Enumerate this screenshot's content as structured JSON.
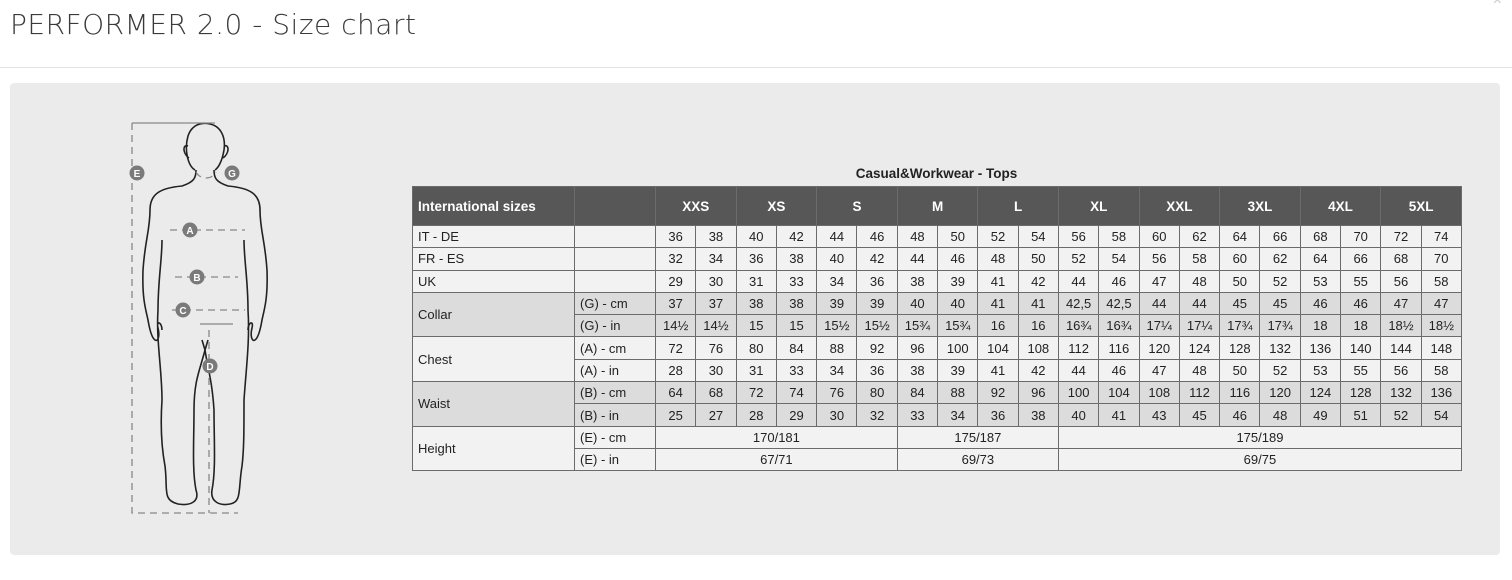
{
  "header": {
    "title": "PERFORMER 2.0 - Size chart",
    "close_label": "×"
  },
  "figure": {
    "markers": [
      "E",
      "G",
      "A",
      "B",
      "C",
      "D"
    ]
  },
  "table": {
    "caption": "Casual&Workwear - Tops",
    "header_label": "International sizes",
    "sizes": [
      "XXS",
      "XS",
      "S",
      "M",
      "L",
      "XL",
      "XXL",
      "3XL",
      "4XL",
      "5XL"
    ],
    "rows": [
      {
        "label": "IT - DE",
        "sub": "",
        "values": [
          "36",
          "38",
          "40",
          "42",
          "44",
          "46",
          "48",
          "50",
          "52",
          "54",
          "56",
          "58",
          "60",
          "62",
          "64",
          "66",
          "68",
          "70",
          "72",
          "74"
        ]
      },
      {
        "label": "FR - ES",
        "sub": "",
        "values": [
          "32",
          "34",
          "36",
          "38",
          "40",
          "42",
          "44",
          "46",
          "48",
          "50",
          "52",
          "54",
          "56",
          "58",
          "60",
          "62",
          "64",
          "66",
          "68",
          "70"
        ]
      },
      {
        "label": "UK",
        "sub": "",
        "values": [
          "29",
          "30",
          "31",
          "33",
          "34",
          "36",
          "38",
          "39",
          "41",
          "42",
          "44",
          "46",
          "47",
          "48",
          "50",
          "52",
          "53",
          "55",
          "56",
          "58"
        ]
      }
    ],
    "groups": [
      {
        "label": "Collar",
        "shade": "g",
        "rows": [
          {
            "sub": "(G) - cm",
            "values": [
              "37",
              "37",
              "38",
              "38",
              "39",
              "39",
              "40",
              "40",
              "41",
              "41",
              "42,5",
              "42,5",
              "44",
              "44",
              "45",
              "45",
              "46",
              "46",
              "47",
              "47"
            ]
          },
          {
            "sub": "(G)  - in",
            "values": [
              "14½",
              "14½",
              "15",
              "15",
              "15½",
              "15½",
              "15¾",
              "15¾",
              "16",
              "16",
              "16¾",
              "16¾",
              "17¼",
              "17¼",
              "17¾",
              "17¾",
              "18",
              "18",
              "18½",
              "18½"
            ]
          }
        ]
      },
      {
        "label": "Chest",
        "shade": "w",
        "rows": [
          {
            "sub": "(A) - cm",
            "values": [
              "72",
              "76",
              "80",
              "84",
              "88",
              "92",
              "96",
              "100",
              "104",
              "108",
              "112",
              "116",
              "120",
              "124",
              "128",
              "132",
              "136",
              "140",
              "144",
              "148"
            ]
          },
          {
            "sub": "(A) - in",
            "values": [
              "28",
              "30",
              "31",
              "33",
              "34",
              "36",
              "38",
              "39",
              "41",
              "42",
              "44",
              "46",
              "47",
              "48",
              "50",
              "52",
              "53",
              "55",
              "56",
              "58"
            ]
          }
        ]
      },
      {
        "label": "Waist",
        "shade": "g",
        "rows": [
          {
            "sub": "(B) - cm",
            "values": [
              "64",
              "68",
              "72",
              "74",
              "76",
              "80",
              "84",
              "88",
              "92",
              "96",
              "100",
              "104",
              "108",
              "112",
              "116",
              "120",
              "124",
              "128",
              "132",
              "136"
            ]
          },
          {
            "sub": "(B) - in",
            "values": [
              "25",
              "27",
              "28",
              "29",
              "30",
              "32",
              "33",
              "34",
              "36",
              "38",
              "40",
              "41",
              "43",
              "45",
              "46",
              "48",
              "49",
              "51",
              "52",
              "54"
            ]
          }
        ]
      }
    ],
    "height": {
      "label": "Height",
      "rows": [
        {
          "sub": "(E) - cm",
          "spans": [
            {
              "cols": 6,
              "value": "170/181"
            },
            {
              "cols": 4,
              "value": "175/187"
            },
            {
              "cols": 10,
              "value": "175/189"
            }
          ]
        },
        {
          "sub": "(E) - in",
          "spans": [
            {
              "cols": 6,
              "value": "67/71"
            },
            {
              "cols": 4,
              "value": "69/73"
            },
            {
              "cols": 10,
              "value": "69/75"
            }
          ]
        }
      ]
    }
  }
}
